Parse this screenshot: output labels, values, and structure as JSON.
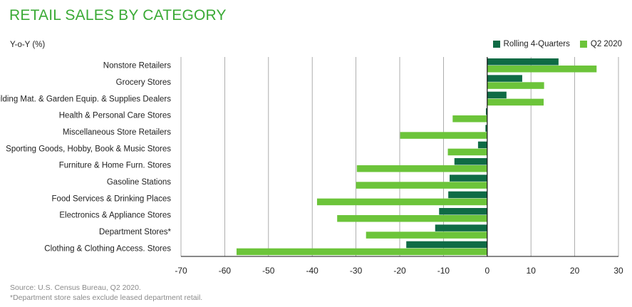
{
  "chart_title": "RETAIL SALES BY CATEGORY",
  "chart_data": {
    "type": "bar",
    "orientation": "horizontal",
    "title": "RETAIL SALES BY CATEGORY",
    "ylabel": "Y-o-Y (%)",
    "xlim": [
      -70,
      30
    ],
    "xticks": [
      -70,
      -60,
      -50,
      -40,
      -30,
      -20,
      -10,
      0,
      10,
      20,
      30
    ],
    "grid": "vertical",
    "legend_position": "top-right",
    "categories": [
      "Nonstore Retailers",
      "Grocery Stores",
      "Building Mat. & Garden Equip. & Supplies Dealers",
      "Health & Personal Care Stores",
      "Miscellaneous Store Retailers",
      "Sporting Goods, Hobby, Book & Music Stores",
      "Furniture & Home Furn. Stores",
      "Gasoline Stations",
      "Food Services & Drinking Places",
      "Electronics & Appliance Stores",
      "Department Stores*",
      "Clothing & Clothing Access. Stores"
    ],
    "series": [
      {
        "name": "Rolling 4-Quarters",
        "color": "#0f6b45",
        "values": [
          16.3,
          8.0,
          4.4,
          -0.3,
          -0.4,
          -2.1,
          -7.5,
          -8.6,
          -8.9,
          -11.0,
          -11.9,
          -18.5
        ]
      },
      {
        "name": "Q2 2020",
        "color": "#6cc43a",
        "values": [
          25.0,
          13.0,
          12.9,
          -7.9,
          -19.9,
          -9.0,
          -29.8,
          -30.0,
          -38.9,
          -34.3,
          -27.7,
          -57.3
        ]
      }
    ]
  },
  "footer": {
    "source": "Source: U.S. Census Bureau, Q2 2020.",
    "note": "*Department store sales exclude leased department retail."
  }
}
